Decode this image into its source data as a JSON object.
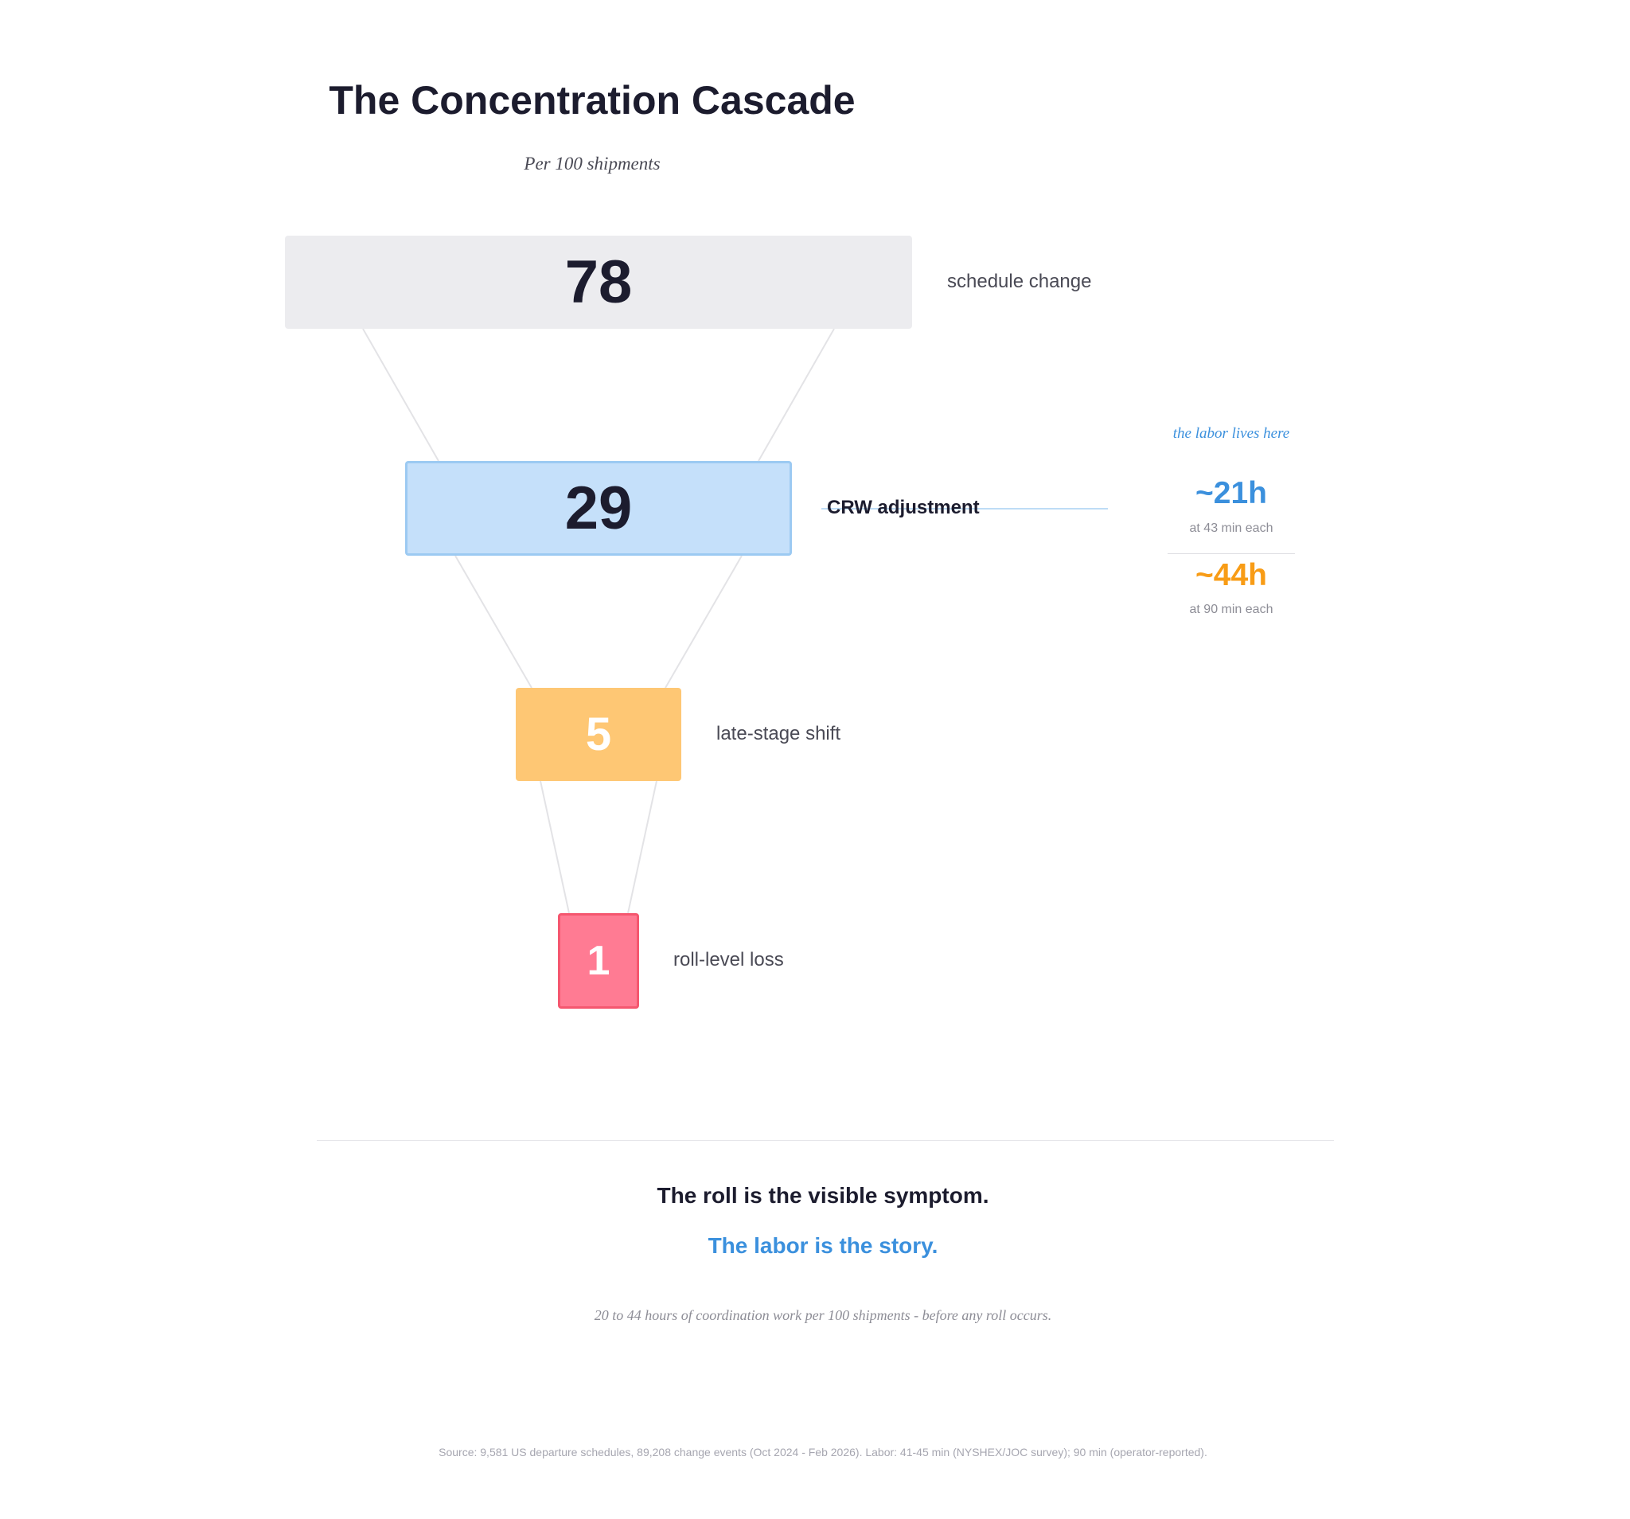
{
  "title": "The Concentration Cascade",
  "subtitle": "Per 100 shipments",
  "stages": [
    {
      "value": "78",
      "label": "schedule change",
      "color": "#ececef"
    },
    {
      "value": "29",
      "label": "CRW adjustment",
      "color": "#c5e0fa"
    },
    {
      "value": "5",
      "label": "late-stage shift",
      "color": "#fec774"
    },
    {
      "value": "1",
      "label": "roll-level loss",
      "color": "#ff7b93"
    }
  ],
  "callout": {
    "heading": "the labor lives here",
    "estimates": [
      {
        "value": "~21h",
        "note": "at 43 min each",
        "color": "#3b90dd"
      },
      {
        "value": "~44h",
        "note": "at 90 min each",
        "color": "#f89c16"
      }
    ]
  },
  "takeaway": {
    "line1": "The roll is the visible symptom.",
    "line2": "The labor is the story."
  },
  "footnote": "20 to 44 hours of coordination work per 100 shipments - before any roll occurs.",
  "source": "Source: 9,581 US departure schedules, 89,208 change events (Oct 2024 - Feb 2026). Labor: 41-45 min (NYSHEX/JOC survey); 90 min (operator-reported)."
}
